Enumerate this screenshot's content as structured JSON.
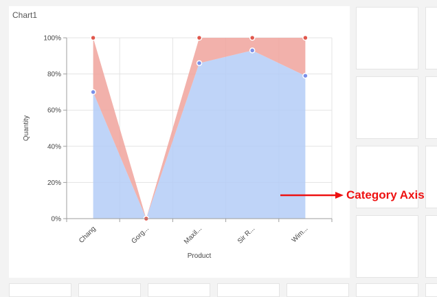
{
  "chart_title": "Chart1",
  "annotation_label": "Category Axis",
  "chart_data": {
    "type": "area",
    "stacking": "100%",
    "title": "Chart1",
    "xlabel": "Product",
    "ylabel": "Quantity",
    "categories": [
      "Chang",
      "Gorg...",
      "Maxil...",
      "Sir R...",
      "Wim..."
    ],
    "yticks": [
      "0%",
      "20%",
      "40%",
      "60%",
      "80%",
      "100%"
    ],
    "ylim": [
      0,
      100
    ],
    "series": [
      {
        "values": [
          70,
          0,
          86,
          93,
          79
        ],
        "color": "#b4ccf7",
        "marker": "#7b8fe8"
      },
      {
        "values": [
          30,
          0,
          14,
          7,
          21
        ],
        "color": "#f0a39c",
        "marker": "#e0574c"
      }
    ],
    "grid": true,
    "legend": "none"
  }
}
